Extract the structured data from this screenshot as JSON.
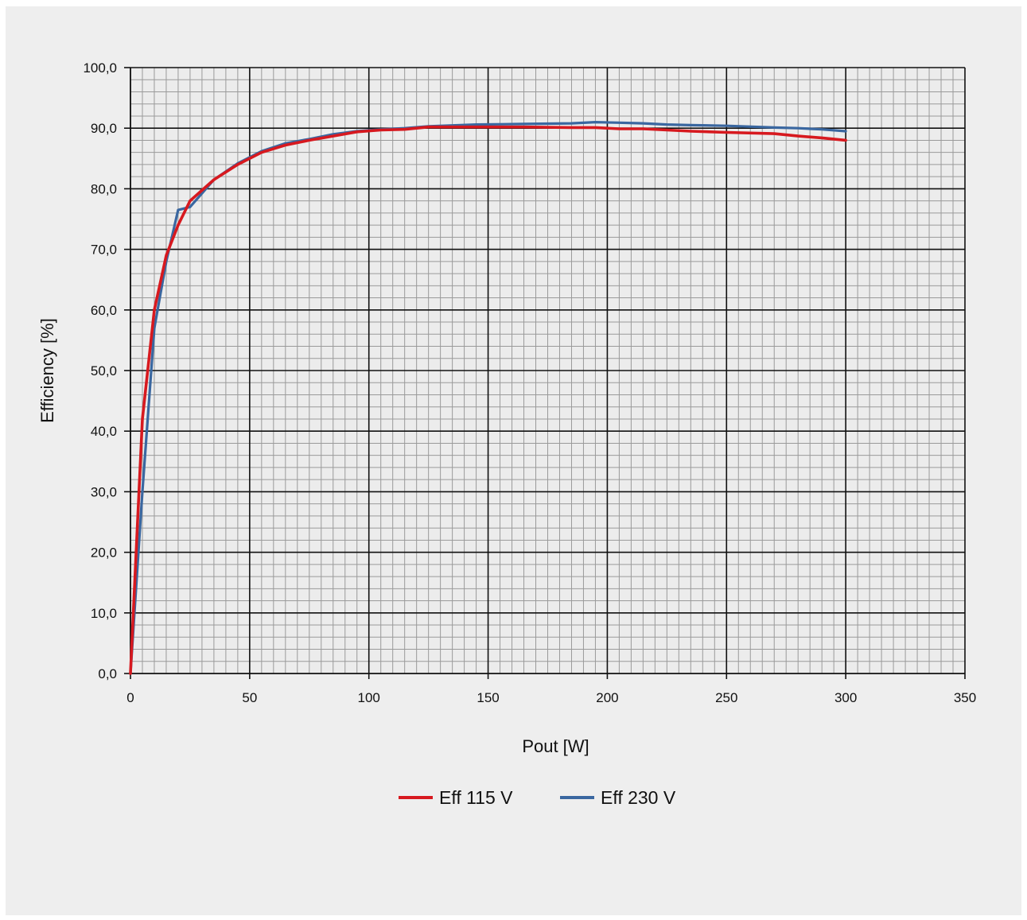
{
  "chart_data": {
    "type": "line",
    "title": "",
    "xlabel": "Pout [W]",
    "ylabel": "Efficiency [%]",
    "xlim": [
      0,
      350
    ],
    "ylim": [
      0,
      100
    ],
    "x_ticks": [
      0,
      50,
      100,
      150,
      200,
      250,
      300,
      350
    ],
    "x_tick_labels": [
      "0",
      "50",
      "100",
      "150",
      "200",
      "250",
      "300",
      "350"
    ],
    "y_ticks": [
      0,
      10,
      20,
      30,
      40,
      50,
      60,
      70,
      80,
      90,
      100
    ],
    "y_tick_labels": [
      "0,0",
      "10,0",
      "20,0",
      "30,0",
      "40,0",
      "50,0",
      "60,0",
      "70,0",
      "80,0",
      "90,0",
      "100,0"
    ],
    "grid": true,
    "legend_position": "bottom",
    "series": [
      {
        "name": "Eff 115 V",
        "color": "#d7191f",
        "x": [
          0,
          5,
          10,
          15,
          20,
          25,
          35,
          45,
          55,
          65,
          75,
          85,
          95,
          105,
          115,
          125,
          145,
          165,
          185,
          195,
          205,
          215,
          225,
          235,
          250,
          270,
          280,
          290,
          300
        ],
        "y": [
          0,
          42,
          60,
          69,
          74,
          78,
          81.5,
          84,
          86,
          87.2,
          88,
          88.7,
          89.4,
          89.7,
          89.8,
          90.2,
          90.2,
          90.2,
          90.1,
          90.1,
          89.9,
          89.9,
          89.7,
          89.5,
          89.3,
          89.1,
          88.7,
          88.4,
          88
        ]
      },
      {
        "name": "Eff 230 V",
        "color": "#3a67a0",
        "x": [
          0,
          5,
          10,
          15,
          20,
          25,
          35,
          45,
          55,
          65,
          75,
          85,
          95,
          105,
          115,
          125,
          145,
          165,
          185,
          195,
          205,
          215,
          225,
          235,
          250,
          270,
          280,
          290,
          300
        ],
        "y": [
          0,
          30,
          57,
          68,
          76.5,
          77,
          81.5,
          84.2,
          86.2,
          87.5,
          88.2,
          89,
          89.5,
          89.8,
          90,
          90.3,
          90.6,
          90.7,
          90.8,
          91,
          90.9,
          90.8,
          90.6,
          90.5,
          90.4,
          90.1,
          90,
          89.8,
          89.5
        ]
      }
    ]
  }
}
